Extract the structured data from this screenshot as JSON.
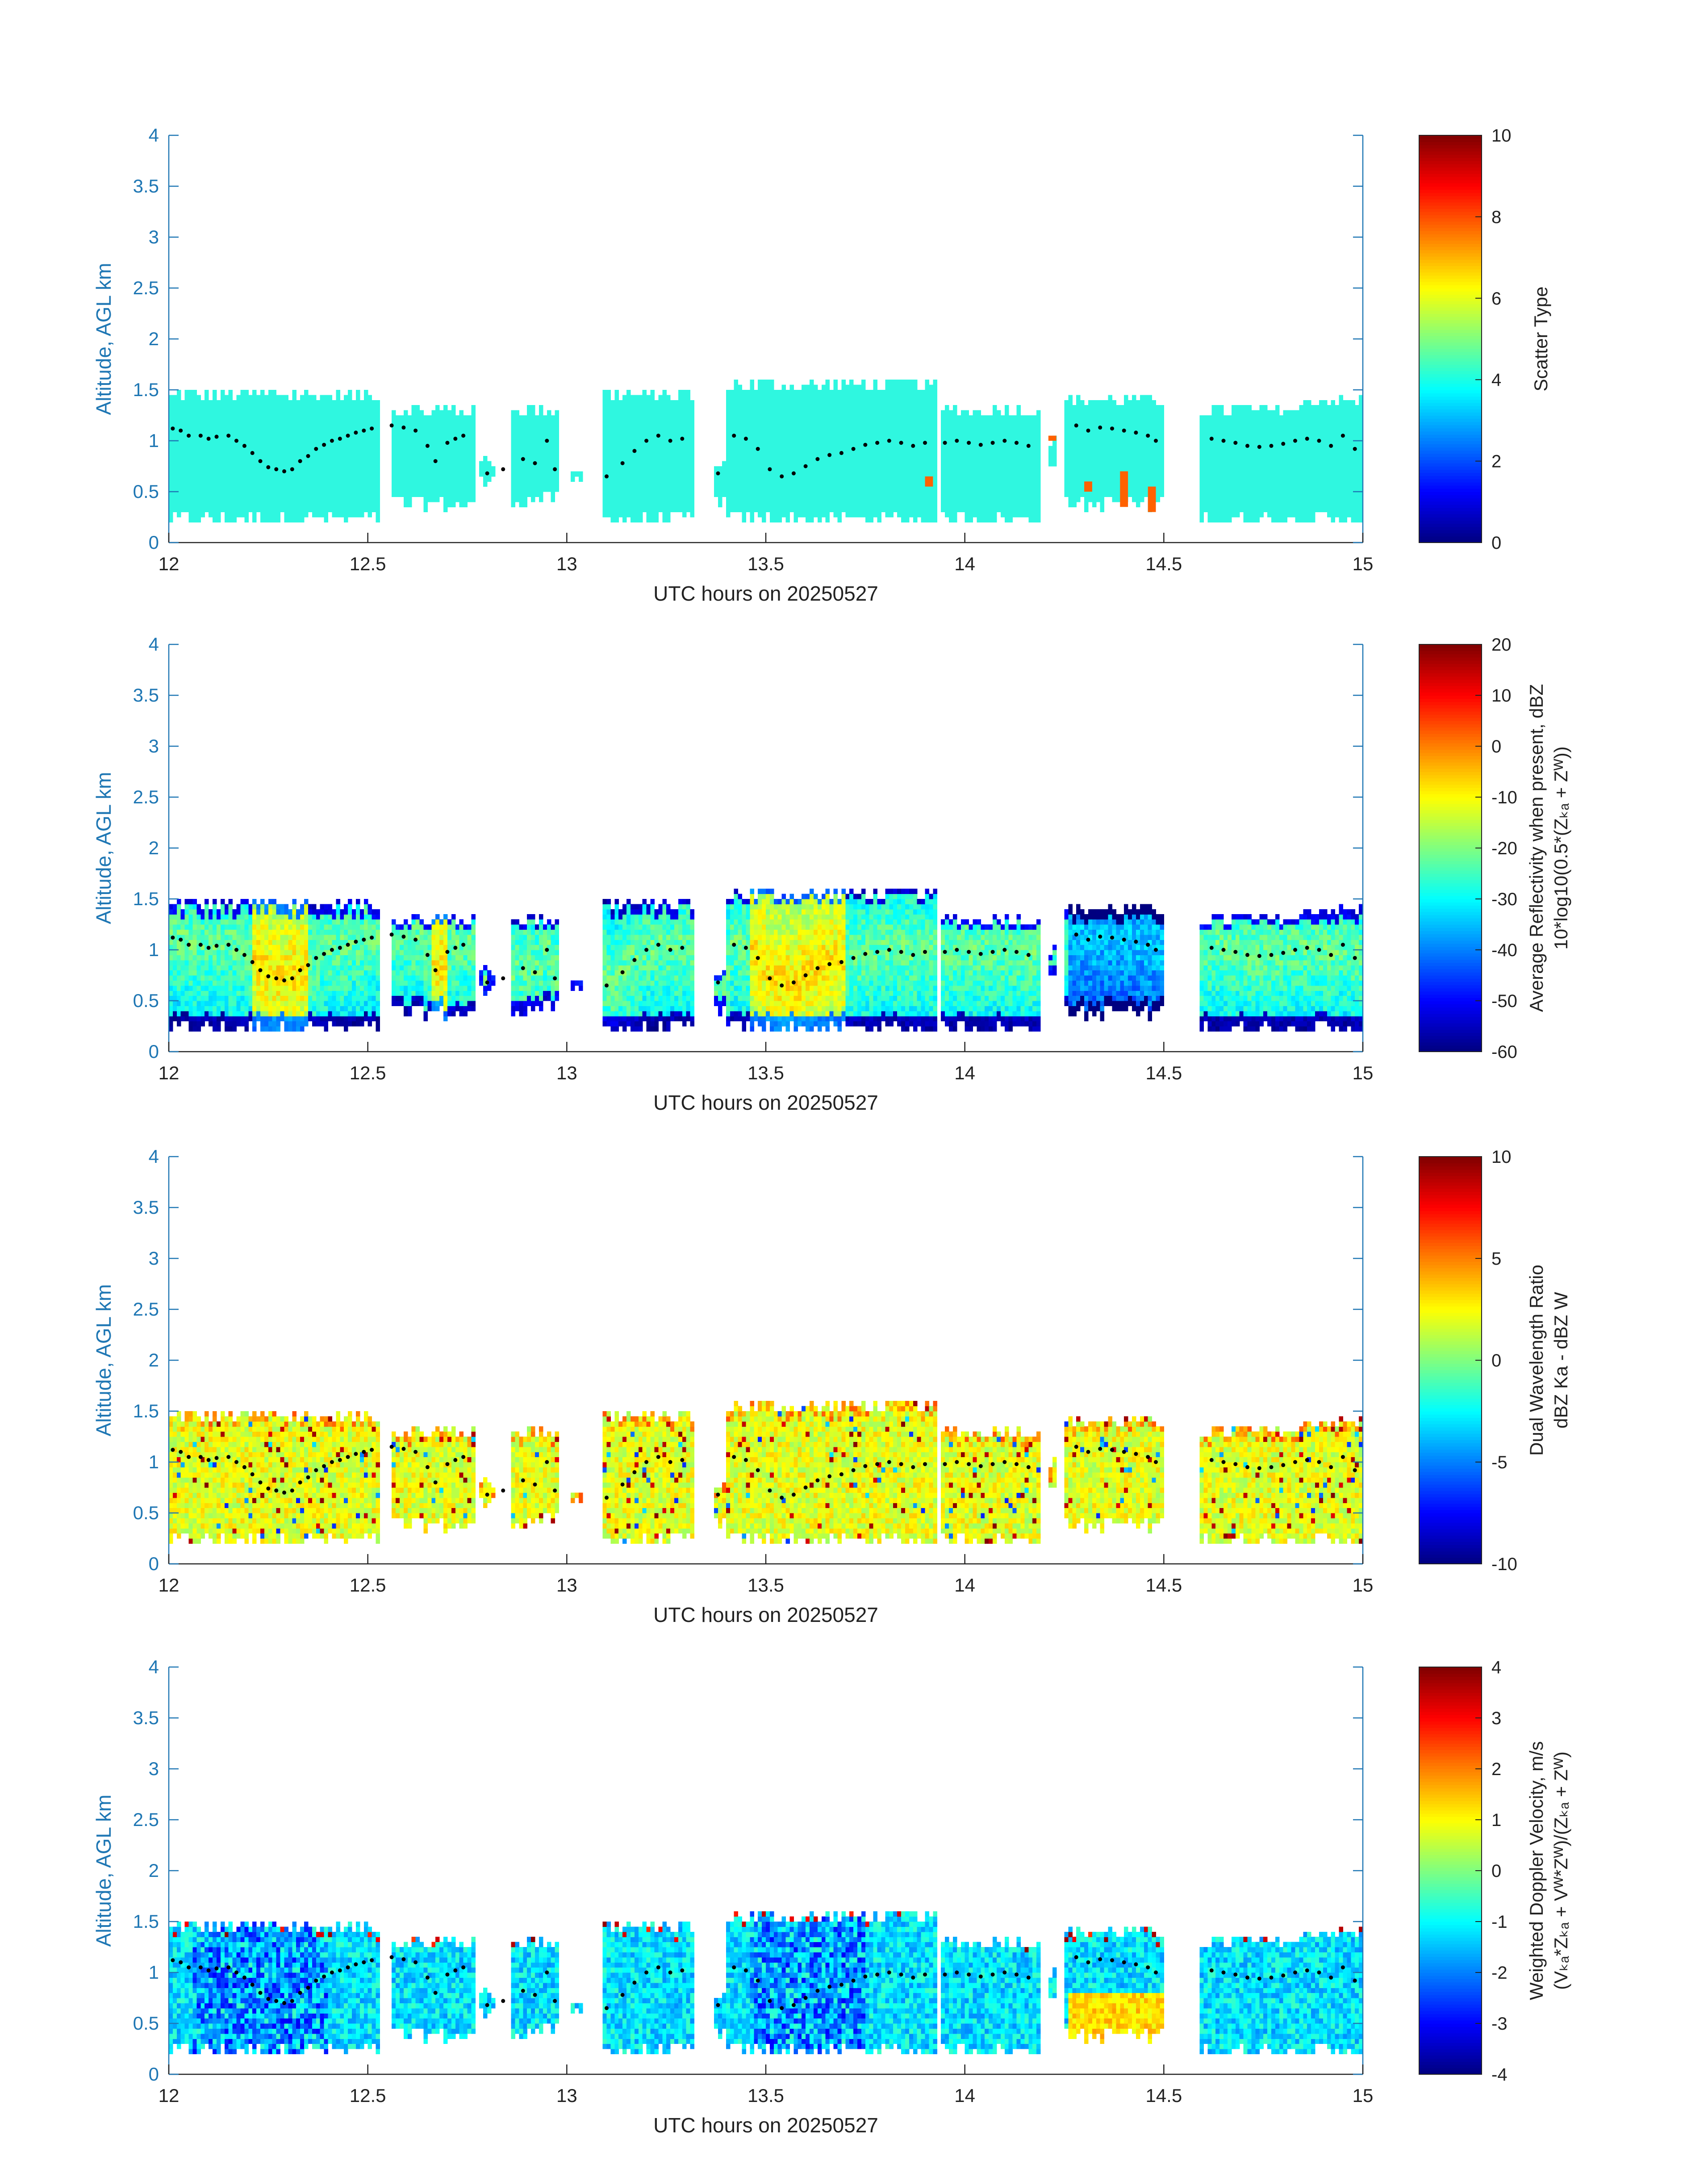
{
  "figure": {
    "colors": {
      "axis": "#1f77b4",
      "cloud_type": "#2ff7e0",
      "text": "#222222"
    },
    "colormap": "jet"
  },
  "chart_data": [
    {
      "type": "heatmap",
      "title": "",
      "xlabel": "UTC hours on 20250527",
      "ylabel": "Altitude, AGL km",
      "xlim": [
        12,
        15
      ],
      "ylim": [
        0,
        4
      ],
      "xticks": [
        "12",
        "12.5",
        "13",
        "13.5",
        "14",
        "14.5",
        "15"
      ],
      "yticks": [
        "0",
        "0.5",
        "1",
        "1.5",
        "2",
        "2.5",
        "3",
        "3.5",
        "4"
      ],
      "colorbar": {
        "label": "Scatter Type",
        "label2": "",
        "range": [
          0,
          10
        ],
        "ticks": [
          "0",
          "2",
          "4",
          "6",
          "8",
          "10"
        ]
      },
      "field": "scatter_type",
      "typical_value": 3.6
    },
    {
      "type": "heatmap",
      "title": "",
      "xlabel": "UTC hours on 20250527",
      "ylabel": "Altitude, AGL km",
      "xlim": [
        12,
        15
      ],
      "ylim": [
        0,
        4
      ],
      "xticks": [
        "12",
        "12.5",
        "13",
        "13.5",
        "14",
        "14.5",
        "15"
      ],
      "yticks": [
        "0",
        "0.5",
        "1",
        "1.5",
        "2",
        "2.5",
        "3",
        "3.5",
        "4"
      ],
      "colorbar": {
        "label": "Average Reflectivity when present, dBZ",
        "label2": "10*log10(0.5*(Zₖₐ + Zᵂ))",
        "range": [
          -60,
          20
        ],
        "ticks": [
          "-60",
          "-50",
          "-40",
          "-30",
          "-20",
          "-10",
          "0",
          "10",
          "20"
        ]
      },
      "field": "reflectivity_dBZ"
    },
    {
      "type": "heatmap",
      "title": "",
      "xlabel": "UTC hours on 20250527",
      "ylabel": "Altitude, AGL km",
      "xlim": [
        12,
        15
      ],
      "ylim": [
        0,
        4
      ],
      "xticks": [
        "12",
        "12.5",
        "13",
        "13.5",
        "14",
        "14.5",
        "15"
      ],
      "yticks": [
        "0",
        "0.5",
        "1",
        "1.5",
        "2",
        "2.5",
        "3",
        "3.5",
        "4"
      ],
      "colorbar": {
        "label": "Dual Wavelength Ratio",
        "label2": "dBZ Ka - dBZ W",
        "range": [
          -10,
          10
        ],
        "ticks": [
          "-10",
          "-5",
          "0",
          "5",
          "10"
        ]
      },
      "field": "dual_wavelength_ratio_dB"
    },
    {
      "type": "heatmap",
      "title": "",
      "xlabel": "UTC hours on 20250527",
      "ylabel": "Altitude, AGL km",
      "xlim": [
        12,
        15
      ],
      "ylim": [
        0,
        4
      ],
      "xticks": [
        "12",
        "12.5",
        "13",
        "13.5",
        "14",
        "14.5",
        "15"
      ],
      "yticks": [
        "0",
        "0.5",
        "1",
        "1.5",
        "2",
        "2.5",
        "3",
        "3.5",
        "4"
      ],
      "colorbar": {
        "label": "Weighted Doppler Velocity, m/s",
        "label2": "(Vₖₐ*Zₖₐ + Vᵂ*Zᵂ)/(Zₖₐ + Zᵂ)",
        "range": [
          -4,
          4
        ],
        "ticks": [
          "-4",
          "-3",
          "-2",
          "-1",
          "0",
          "1",
          "2",
          "3",
          "4"
        ]
      },
      "field": "doppler_velocity_ms"
    }
  ],
  "cloud_segments": [
    {
      "start": 12.0,
      "end": 12.53,
      "base": 0.2,
      "top": 1.45
    },
    {
      "start": 12.56,
      "end": 12.77,
      "base": 0.35,
      "top": 1.3
    },
    {
      "start": 12.78,
      "end": 12.82,
      "base": 0.55,
      "top": 0.8
    },
    {
      "start": 12.86,
      "end": 12.98,
      "base": 0.4,
      "top": 1.3
    },
    {
      "start": 13.01,
      "end": 13.04,
      "base": 0.55,
      "top": 0.75
    },
    {
      "start": 13.09,
      "end": 13.32,
      "base": 0.2,
      "top": 1.45
    },
    {
      "start": 13.37,
      "end": 13.4,
      "base": 0.4,
      "top": 0.75
    },
    {
      "start": 13.4,
      "end": 13.93,
      "base": 0.2,
      "top": 1.55
    },
    {
      "start": 13.94,
      "end": 14.19,
      "base": 0.2,
      "top": 1.3
    },
    {
      "start": 14.21,
      "end": 14.23,
      "base": 0.8,
      "top": 1.0
    },
    {
      "start": 14.25,
      "end": 14.5,
      "base": 0.35,
      "top": 1.4
    },
    {
      "start": 14.59,
      "end": 14.85,
      "base": 0.2,
      "top": 1.3
    },
    {
      "start": 14.85,
      "end": 15.0,
      "base": 0.2,
      "top": 1.4
    }
  ],
  "cloud_top_dots": [
    [
      12.01,
      1.12
    ],
    [
      12.03,
      1.1
    ],
    [
      12.05,
      1.05
    ],
    [
      12.08,
      1.05
    ],
    [
      12.1,
      1.02
    ],
    [
      12.12,
      1.04
    ],
    [
      12.15,
      1.05
    ],
    [
      12.17,
      1.0
    ],
    [
      12.19,
      0.95
    ],
    [
      12.21,
      0.88
    ],
    [
      12.23,
      0.8
    ],
    [
      12.25,
      0.74
    ],
    [
      12.27,
      0.72
    ],
    [
      12.29,
      0.7
    ],
    [
      12.31,
      0.72
    ],
    [
      12.33,
      0.8
    ],
    [
      12.35,
      0.85
    ],
    [
      12.37,
      0.92
    ],
    [
      12.39,
      0.96
    ],
    [
      12.41,
      1.0
    ],
    [
      12.43,
      1.02
    ],
    [
      12.45,
      1.05
    ],
    [
      12.47,
      1.08
    ],
    [
      12.49,
      1.1
    ],
    [
      12.51,
      1.12
    ],
    [
      12.56,
      1.15
    ],
    [
      12.59,
      1.13
    ],
    [
      12.62,
      1.1
    ],
    [
      12.65,
      0.95
    ],
    [
      12.67,
      0.8
    ],
    [
      12.7,
      0.98
    ],
    [
      12.72,
      1.02
    ],
    [
      12.74,
      1.05
    ],
    [
      12.8,
      0.68
    ],
    [
      12.84,
      0.72
    ],
    [
      12.89,
      0.82
    ],
    [
      12.92,
      0.78
    ],
    [
      12.95,
      1.0
    ],
    [
      12.97,
      0.72
    ],
    [
      13.1,
      0.65
    ],
    [
      13.14,
      0.78
    ],
    [
      13.17,
      0.9
    ],
    [
      13.2,
      1.0
    ],
    [
      13.23,
      1.05
    ],
    [
      13.26,
      1.0
    ],
    [
      13.29,
      1.02
    ],
    [
      13.38,
      0.68
    ],
    [
      13.42,
      1.05
    ],
    [
      13.45,
      1.02
    ],
    [
      13.48,
      0.92
    ],
    [
      13.51,
      0.72
    ],
    [
      13.54,
      0.65
    ],
    [
      13.57,
      0.68
    ],
    [
      13.6,
      0.75
    ],
    [
      13.63,
      0.82
    ],
    [
      13.66,
      0.86
    ],
    [
      13.69,
      0.88
    ],
    [
      13.72,
      0.92
    ],
    [
      13.75,
      0.96
    ],
    [
      13.78,
      0.98
    ],
    [
      13.81,
      1.0
    ],
    [
      13.84,
      0.98
    ],
    [
      13.87,
      0.95
    ],
    [
      13.9,
      0.98
    ],
    [
      13.95,
      0.98
    ],
    [
      13.98,
      1.0
    ],
    [
      14.01,
      0.98
    ],
    [
      14.04,
      0.96
    ],
    [
      14.07,
      0.98
    ],
    [
      14.1,
      1.0
    ],
    [
      14.13,
      0.98
    ],
    [
      14.16,
      0.95
    ],
    [
      14.28,
      1.15
    ],
    [
      14.31,
      1.1
    ],
    [
      14.34,
      1.13
    ],
    [
      14.37,
      1.12
    ],
    [
      14.4,
      1.1
    ],
    [
      14.43,
      1.08
    ],
    [
      14.46,
      1.05
    ],
    [
      14.48,
      1.0
    ],
    [
      14.62,
      1.02
    ],
    [
      14.65,
      1.0
    ],
    [
      14.68,
      0.98
    ],
    [
      14.71,
      0.95
    ],
    [
      14.74,
      0.94
    ],
    [
      14.77,
      0.95
    ],
    [
      14.8,
      0.97
    ],
    [
      14.83,
      1.0
    ],
    [
      14.86,
      1.02
    ],
    [
      14.89,
      1.0
    ],
    [
      14.92,
      0.95
    ],
    [
      14.95,
      1.05
    ],
    [
      14.98,
      0.92
    ]
  ],
  "scatter_type_anomalies": [
    {
      "x0": 13.9,
      "x1": 13.92,
      "y0": 0.55,
      "y1": 0.65,
      "value": 7.8
    },
    {
      "x0": 14.21,
      "x1": 14.23,
      "y0": 1.0,
      "y1": 1.05,
      "value": 7.8
    },
    {
      "x0": 14.3,
      "x1": 14.32,
      "y0": 0.5,
      "y1": 0.6,
      "value": 7.8
    },
    {
      "x0": 14.39,
      "x1": 14.41,
      "y0": 0.35,
      "y1": 0.7,
      "value": 7.8
    },
    {
      "x0": 14.46,
      "x1": 14.48,
      "y0": 0.3,
      "y1": 0.55,
      "value": 7.8
    }
  ]
}
